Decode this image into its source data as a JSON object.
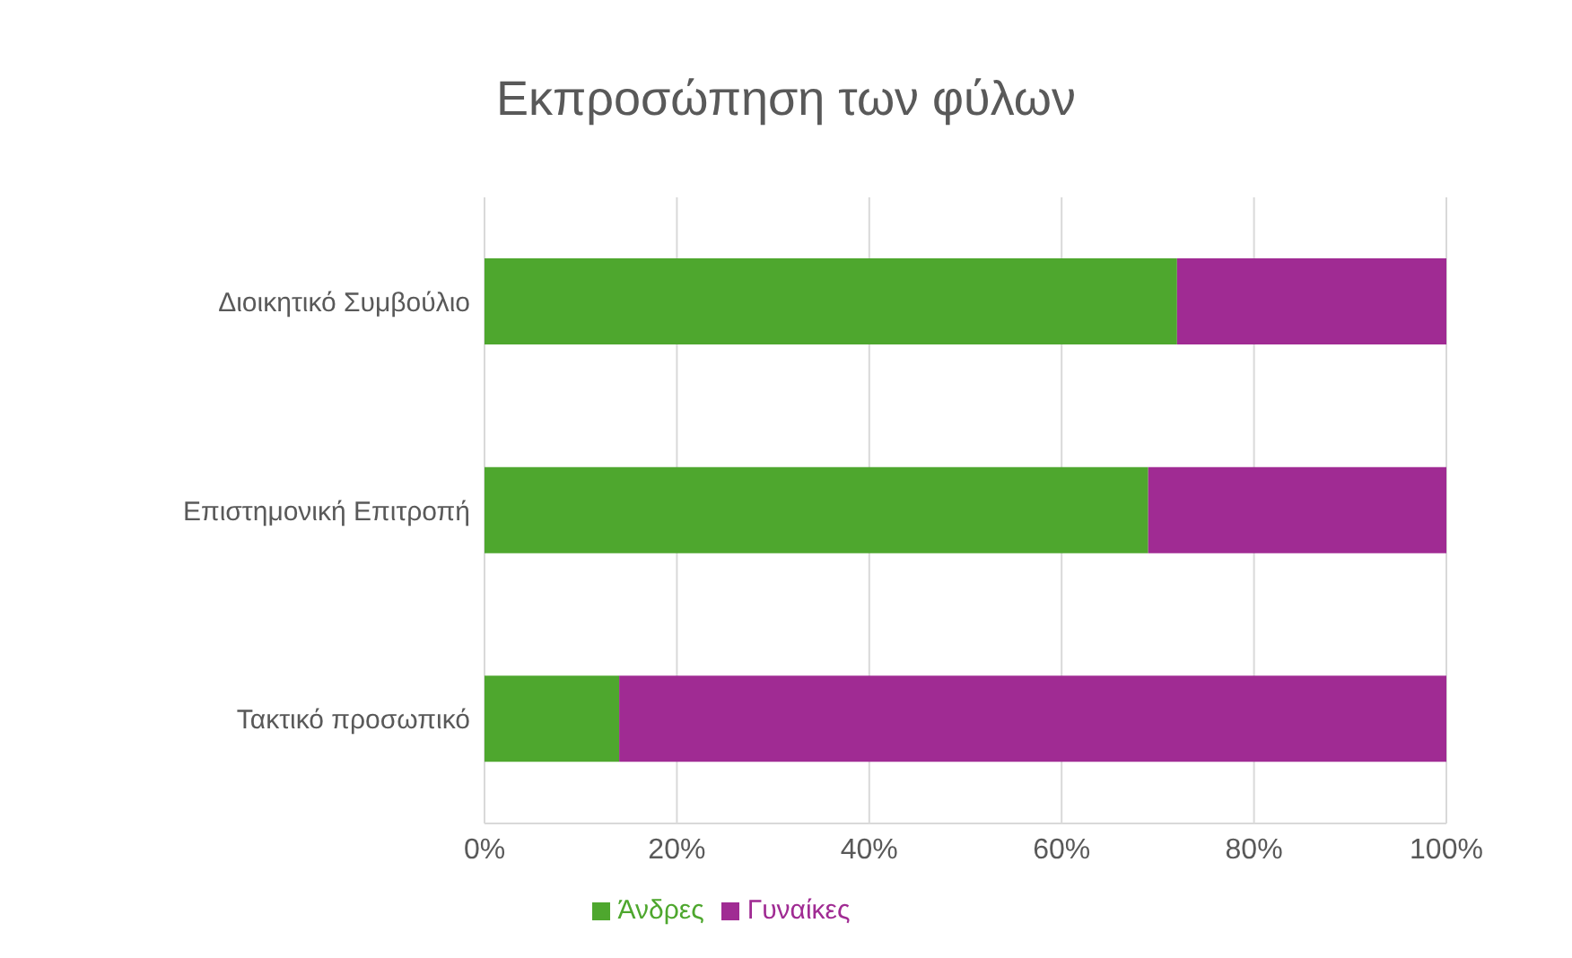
{
  "chart_data": {
    "type": "bar",
    "title": "Εκπροσώπηση των φύλων",
    "orientation": "horizontal",
    "stacked": true,
    "categories": [
      "Διοικητικό Συμβούλιο",
      "Επιστημονική Επιτροπή",
      "Τακτικό προσωπικό"
    ],
    "series": [
      {
        "name": "Άνδρες",
        "color": "#4ea72e",
        "values": [
          72,
          69,
          14
        ]
      },
      {
        "name": "Γυναίκες",
        "color": "#a02b93",
        "values": [
          28,
          31,
          86
        ]
      }
    ],
    "xlim": [
      0,
      100
    ],
    "xticks": [
      {
        "value": 0,
        "label": "0%"
      },
      {
        "value": 20,
        "label": "20%"
      },
      {
        "value": 40,
        "label": "40%"
      },
      {
        "value": 60,
        "label": "60%"
      },
      {
        "value": 80,
        "label": "80%"
      },
      {
        "value": 100,
        "label": "100%"
      }
    ],
    "grid": "x",
    "legend": "bottom"
  }
}
